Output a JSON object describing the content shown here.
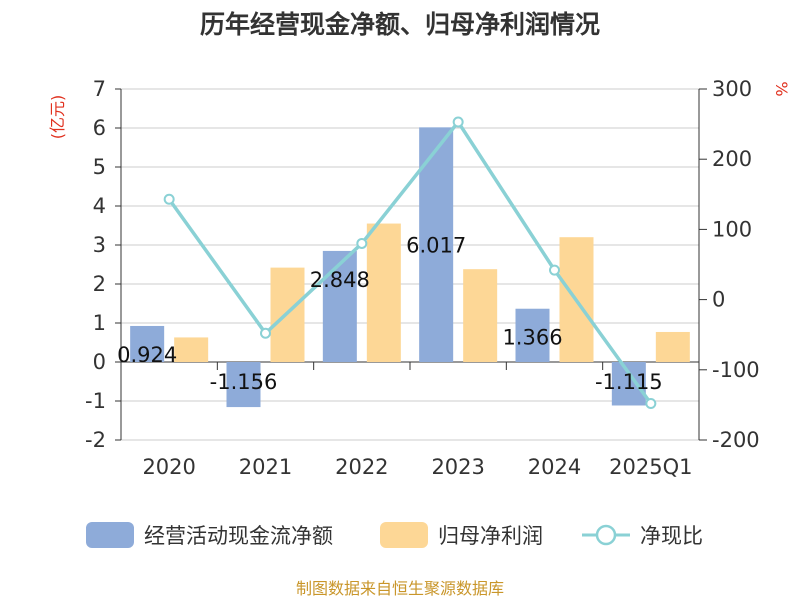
{
  "chart_data": {
    "type": "bar",
    "title": "历年经营现金净额、归母净利润情况",
    "categories": [
      "2020",
      "2021",
      "2022",
      "2023",
      "2024",
      "2025Q1"
    ],
    "series": [
      {
        "name": "经营活动现金流净额",
        "type": "bar",
        "axis": "left",
        "color": "#8eabd9",
        "values": [
          0.924,
          -1.156,
          2.848,
          6.017,
          1.366,
          -1.115
        ],
        "labels": [
          "0.924",
          "-1.156",
          "2.848",
          "6.017",
          "1.366",
          "-1.115"
        ]
      },
      {
        "name": "归母净利润",
        "type": "bar",
        "axis": "left",
        "color": "#fdd796",
        "values": [
          0.63,
          2.42,
          3.55,
          2.38,
          3.2,
          0.77
        ]
      },
      {
        "name": "净现比",
        "type": "line",
        "axis": "right",
        "color": "#8ad1d5",
        "values": [
          143,
          -48,
          80,
          253,
          42,
          -148
        ]
      }
    ],
    "y_left": {
      "unit": "(亿元)",
      "ylim": [
        -2,
        7
      ],
      "ticks": [
        "7",
        "6",
        "5",
        "4",
        "3",
        "2",
        "1",
        "0",
        "-1",
        "-2"
      ]
    },
    "y_right": {
      "unit": "%",
      "ylim": [
        -200,
        300
      ],
      "ticks": [
        "300",
        "200",
        "100",
        "0",
        "-100",
        "-200"
      ]
    },
    "grid": true,
    "legend_position": "bottom"
  },
  "footer": "制图数据来自恒生聚源数据库"
}
